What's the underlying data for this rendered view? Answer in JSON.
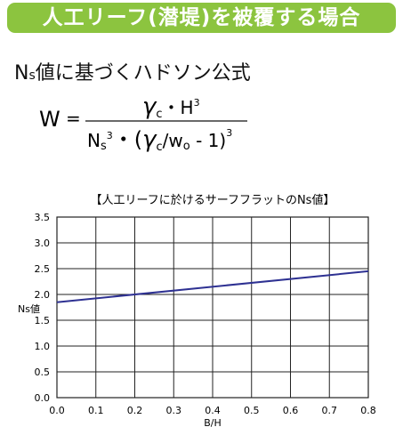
{
  "header": {
    "title": "人工リーフ(潜堤)を被覆する場合"
  },
  "subtitle": [
    "N",
    "s",
    "値に基づくハドソン公式"
  ],
  "formula": {
    "lhs": "W",
    "equals": "=",
    "numerator": [
      "γ",
      "c",
      "・H",
      "3"
    ],
    "denominator": [
      "N",
      "s",
      "3",
      "・(",
      "γ",
      "c",
      "/w",
      "o",
      " - 1)",
      "3"
    ]
  },
  "chart_data": {
    "type": "line",
    "title": "【人工リーフに於けるサーフフラットのNs値】",
    "x_label": "B/H",
    "y_label": "Ns値",
    "x": [
      0,
      0.8
    ],
    "series": [
      {
        "name": "Ns",
        "color": "#2e3192",
        "values": [
          1.85,
          2.45
        ]
      }
    ],
    "xlim": [
      0,
      0.8
    ],
    "ylim": [
      0,
      3.5
    ],
    "xticks": [
      {
        "value": 0,
        "label": "0.0"
      },
      0.1,
      0.2,
      0.3,
      0.4,
      0.5,
      0.6,
      0.7,
      0.8
    ],
    "yticks": [
      {
        "value": 0,
        "label": "0.0"
      },
      0.5,
      {
        "value": 1,
        "label": "1.0"
      },
      1.5,
      {
        "value": 2,
        "label": "2.0"
      },
      2.5,
      {
        "value": 3,
        "label": "3.0"
      },
      3.5
    ],
    "grid": true
  }
}
